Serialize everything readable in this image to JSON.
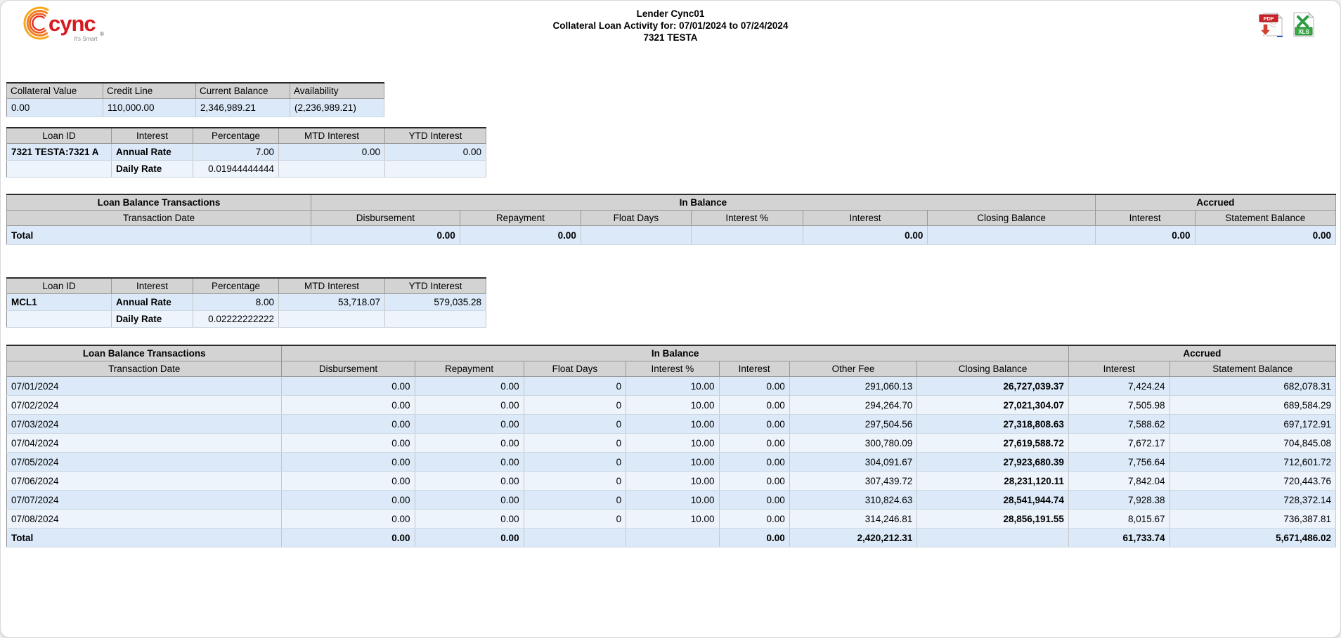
{
  "page": {
    "title_lines": [
      "Lender Cync01",
      "Collateral Loan Activity for: 07/01/2024 to 07/24/2024",
      "7321 TESTA"
    ]
  },
  "logo": {
    "brand": "cync",
    "tagline": "It's Smart",
    "registered_mark": "®"
  },
  "toolbar": {
    "pdf_icon_label": "PDF",
    "xls_icon_label": "XLS"
  },
  "collateral_summary": {
    "headers": [
      "Collateral Value",
      "Credit Line",
      "Current Balance",
      "Availability"
    ],
    "values": [
      "0.00",
      "110,000.00",
      "2,346,989.21",
      "(2,236,989.21)"
    ]
  },
  "loan_rate_tables": [
    {
      "headers": [
        "Loan ID",
        "Interest",
        "Percentage",
        "MTD Interest",
        "YTD Interest"
      ],
      "rows": [
        [
          "7321 TESTA:7321 A",
          "Annual Rate",
          "7.00",
          "0.00",
          "0.00"
        ],
        [
          "",
          "Daily Rate",
          "0.01944444444",
          "",
          ""
        ]
      ]
    },
    {
      "headers": [
        "Loan ID",
        "Interest",
        "Percentage",
        "MTD Interest",
        "YTD Interest"
      ],
      "rows": [
        [
          "MCL1",
          "Annual Rate",
          "8.00",
          "53,718.07",
          "579,035.28"
        ],
        [
          "",
          "Daily Rate",
          "0.02222222222",
          "",
          ""
        ]
      ]
    }
  ],
  "transactions_tables": [
    {
      "group_headers": [
        "Loan Balance Transactions",
        "In Balance",
        "Accrued"
      ],
      "in_balance_span": 6,
      "columns": [
        "Transaction Date",
        "Disbursement",
        "Repayment",
        "Float Days",
        "Interest %",
        "Interest",
        "Closing Balance",
        "Interest",
        "Statement Balance"
      ],
      "rows": [],
      "total": [
        "Total",
        "0.00",
        "0.00",
        "",
        "",
        "0.00",
        "",
        "0.00",
        "0.00"
      ]
    },
    {
      "group_headers": [
        "Loan Balance Transactions",
        "In Balance",
        "Accrued"
      ],
      "in_balance_span": 7,
      "columns": [
        "Transaction Date",
        "Disbursement",
        "Repayment",
        "Float Days",
        "Interest %",
        "Interest",
        "Other Fee",
        "Closing Balance",
        "Interest",
        "Statement Balance"
      ],
      "rows": [
        [
          "07/01/2024",
          "0.00",
          "0.00",
          "0",
          "10.00",
          "0.00",
          "291,060.13",
          "26,727,039.37",
          "7,424.24",
          "682,078.31"
        ],
        [
          "07/02/2024",
          "0.00",
          "0.00",
          "0",
          "10.00",
          "0.00",
          "294,264.70",
          "27,021,304.07",
          "7,505.98",
          "689,584.29"
        ],
        [
          "07/03/2024",
          "0.00",
          "0.00",
          "0",
          "10.00",
          "0.00",
          "297,504.56",
          "27,318,808.63",
          "7,588.62",
          "697,172.91"
        ],
        [
          "07/04/2024",
          "0.00",
          "0.00",
          "0",
          "10.00",
          "0.00",
          "300,780.09",
          "27,619,588.72",
          "7,672.17",
          "704,845.08"
        ],
        [
          "07/05/2024",
          "0.00",
          "0.00",
          "0",
          "10.00",
          "0.00",
          "304,091.67",
          "27,923,680.39",
          "7,756.64",
          "712,601.72"
        ],
        [
          "07/06/2024",
          "0.00",
          "0.00",
          "0",
          "10.00",
          "0.00",
          "307,439.72",
          "28,231,120.11",
          "7,842.04",
          "720,443.76"
        ],
        [
          "07/07/2024",
          "0.00",
          "0.00",
          "0",
          "10.00",
          "0.00",
          "310,824.63",
          "28,541,944.74",
          "7,928.38",
          "728,372.14"
        ],
        [
          "07/08/2024",
          "0.00",
          "0.00",
          "0",
          "10.00",
          "0.00",
          "314,246.81",
          "28,856,191.55",
          "8,015.67",
          "736,387.81"
        ]
      ],
      "total": [
        "Total",
        "0.00",
        "0.00",
        "",
        "",
        "0.00",
        "2,420,212.31",
        "",
        "61,733.74",
        "5,671,486.02"
      ]
    }
  ],
  "colors": {
    "row_blue": "#dbe9f8",
    "row_light": "#eef4fb",
    "header_gray": "#d3d3d3",
    "brand_red": "#d71920",
    "pdf_red": "#cc2229",
    "excel_green": "#39a845"
  }
}
